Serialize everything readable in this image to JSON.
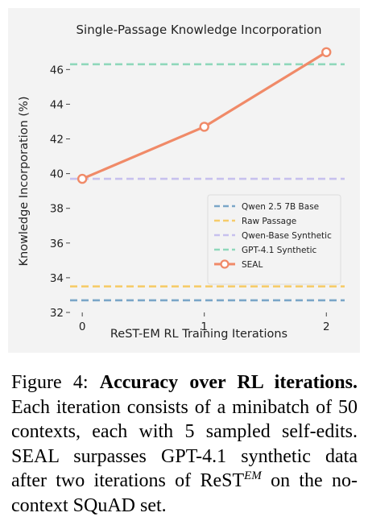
{
  "chart_data": {
    "type": "line",
    "title": "Single-Passage Knowledge Incorporation",
    "xlabel": "ReST-EM RL Training Iterations",
    "ylabel": "Knowledge Incorporation (%)",
    "x": [
      0,
      1,
      2
    ],
    "x_tick_labels": [
      "0",
      "1",
      "2"
    ],
    "xlim": [
      -0.1,
      2.15
    ],
    "ylim": [
      32,
      47.5
    ],
    "y_ticks": [
      32,
      34,
      36,
      38,
      40,
      42,
      44,
      46
    ],
    "y_tick_labels": [
      "32",
      "34",
      "36",
      "38",
      "40",
      "42",
      "44",
      "46"
    ],
    "grid": false,
    "legend_position": "center-right",
    "series": [
      {
        "name": "Qwen 2.5 7B Base",
        "style": "dashed-hline",
        "color": "#7aa6c8",
        "values": [
          32.7,
          32.7,
          32.7
        ]
      },
      {
        "name": "Raw Passage",
        "style": "dashed-hline",
        "color": "#f6cc6a",
        "values": [
          33.5,
          33.5,
          33.5
        ]
      },
      {
        "name": "Qwen-Base Synthetic",
        "style": "dashed-hline",
        "color": "#c7c1ee",
        "values": [
          39.7,
          39.7,
          39.7
        ]
      },
      {
        "name": "GPT-4.1 Synthetic",
        "style": "dashed-hline",
        "color": "#8fd8bb",
        "values": [
          46.3,
          46.3,
          46.3
        ]
      },
      {
        "name": "SEAL",
        "style": "line-marker",
        "color": "#f08a68",
        "values": [
          39.7,
          42.7,
          47.0
        ]
      }
    ]
  },
  "caption": {
    "label": "Figure 4:",
    "bold": "Accuracy over RL iterations.",
    "text_before_sup": "Each iteration consists of a minibatch of 50 contexts, each with 5 sampled self-edits. SEAL surpasses GPT-4.1 synthetic data after two iterations of ReST",
    "sup": "EM",
    "text_after_sup": "on the no-context SQuAD set."
  }
}
